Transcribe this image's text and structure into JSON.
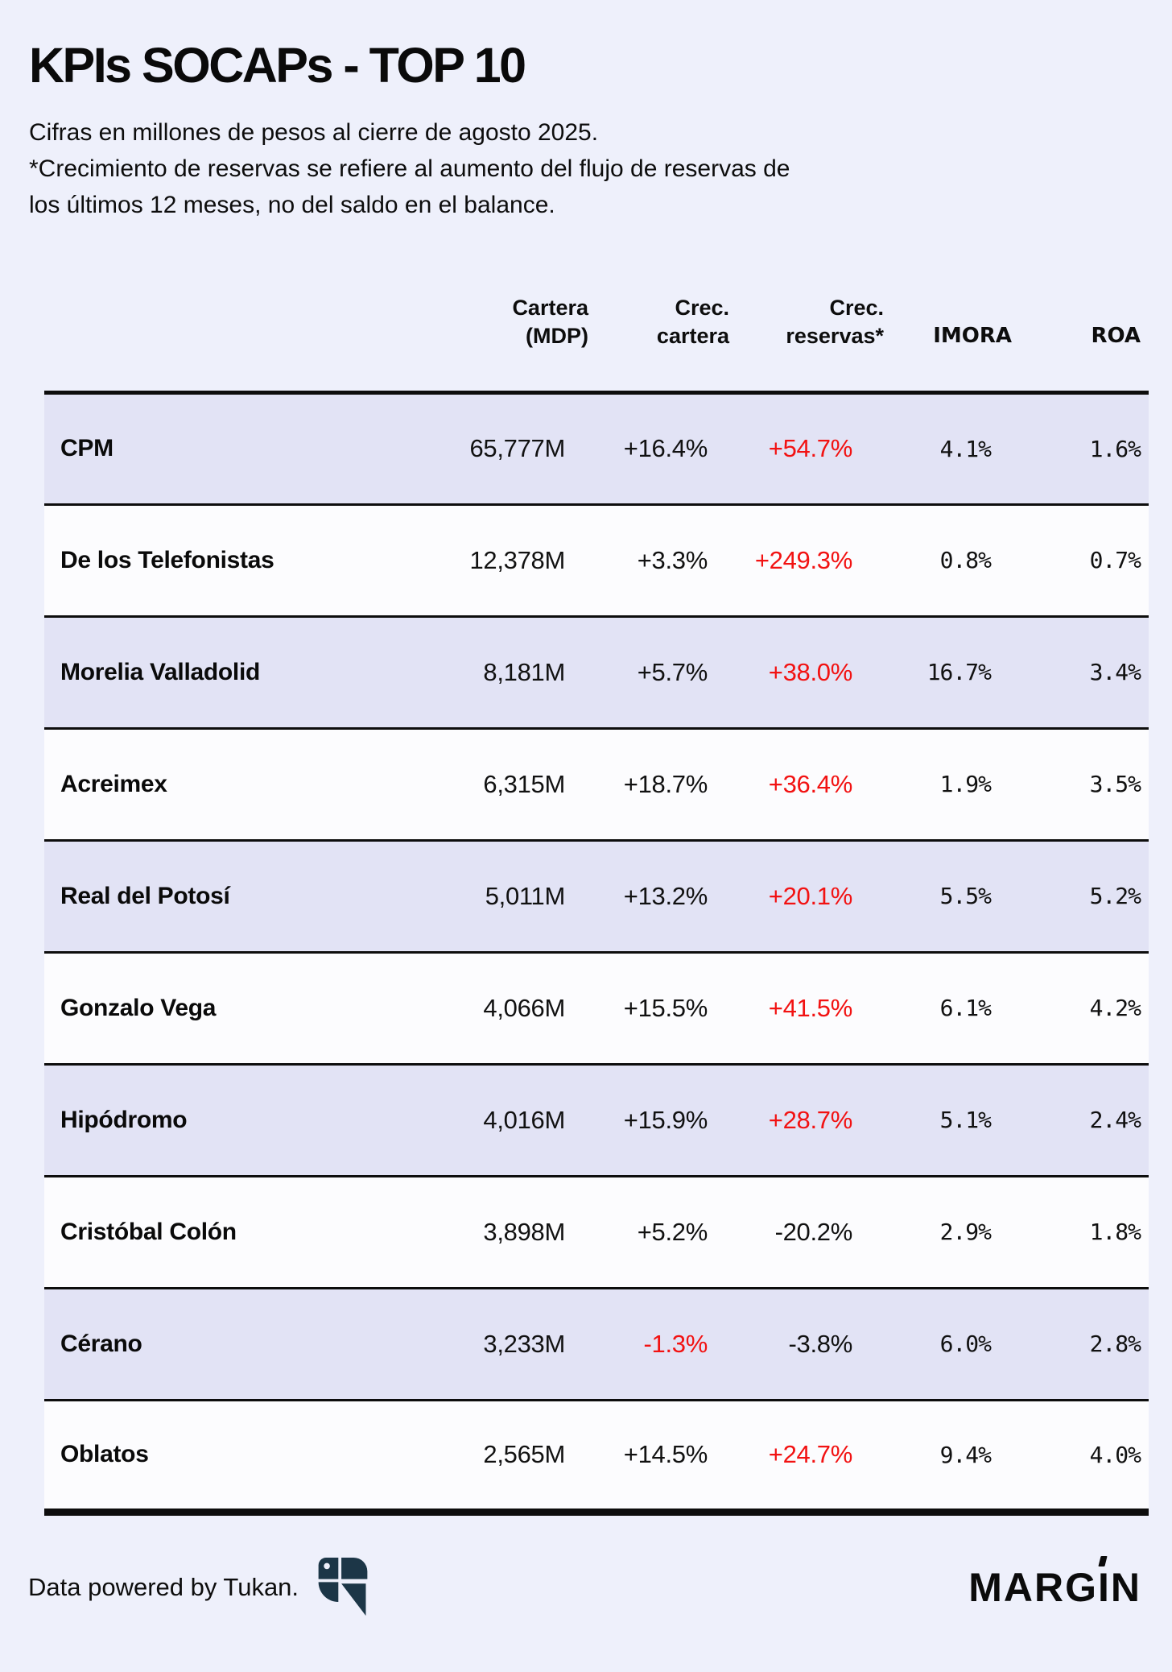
{
  "header": {
    "title": "KPIs SOCAPs - TOP 10",
    "subtitle": "Cifras en millones de pesos al cierre de agosto 2025.",
    "note": "*Crecimiento de reservas se refiere al aumento del flujo de reservas de los últimos 12 meses, no del saldo en el balance."
  },
  "chart_data": {
    "type": "table",
    "title": "KPIs SOCAPs - TOP 10",
    "unit": "millones de pesos (MDP)",
    "column_labels": [
      "Cartera\n(MDP)",
      "Crec.\ncartera",
      "Crec.\nreservas*",
      "IMORA",
      "ROA"
    ],
    "columns": [
      "Cartera (MDP)",
      "Crec. cartera",
      "Crec. reservas*",
      "IMORA",
      "ROA"
    ],
    "rows": [
      {
        "name": "CPM",
        "values": [
          "65,777M",
          "+16.4%",
          "+54.7%",
          "4.1%",
          "1.6%"
        ],
        "red": [
          false,
          false,
          true,
          false,
          false
        ]
      },
      {
        "name": "De los Telefonistas",
        "values": [
          "12,378M",
          "+3.3%",
          "+249.3%",
          "0.8%",
          "0.7%"
        ],
        "red": [
          false,
          false,
          true,
          false,
          false
        ]
      },
      {
        "name": "Morelia Valladolid",
        "values": [
          "8,181M",
          "+5.7%",
          "+38.0%",
          "16.7%",
          "3.4%"
        ],
        "red": [
          false,
          false,
          true,
          false,
          false
        ]
      },
      {
        "name": "Acreimex",
        "values": [
          "6,315M",
          "+18.7%",
          "+36.4%",
          "1.9%",
          "3.5%"
        ],
        "red": [
          false,
          false,
          true,
          false,
          false
        ]
      },
      {
        "name": "Real del Potosí",
        "values": [
          "5,011M",
          "+13.2%",
          "+20.1%",
          "5.5%",
          "5.2%"
        ],
        "red": [
          false,
          false,
          true,
          false,
          false
        ]
      },
      {
        "name": "Gonzalo Vega",
        "values": [
          "4,066M",
          "+15.5%",
          "+41.5%",
          "6.1%",
          "4.2%"
        ],
        "red": [
          false,
          false,
          true,
          false,
          false
        ]
      },
      {
        "name": "Hipódromo",
        "values": [
          "4,016M",
          "+15.9%",
          "+28.7%",
          "5.1%",
          "2.4%"
        ],
        "red": [
          false,
          false,
          true,
          false,
          false
        ]
      },
      {
        "name": "Cristóbal Colón",
        "values": [
          "3,898M",
          "+5.2%",
          "-20.2%",
          "2.9%",
          "1.8%"
        ],
        "red": [
          false,
          false,
          false,
          false,
          false
        ]
      },
      {
        "name": "Cérano",
        "values": [
          "3,233M",
          "-1.3%",
          "-3.8%",
          "6.0%",
          "2.8%"
        ],
        "red": [
          false,
          true,
          false,
          false,
          false
        ]
      },
      {
        "name": "Oblatos",
        "values": [
          "2,565M",
          "+14.5%",
          "+24.7%",
          "9.4%",
          "4.0%"
        ],
        "red": [
          false,
          false,
          true,
          false,
          false
        ]
      }
    ]
  },
  "footer": {
    "credit": "Data powered by Tukan.",
    "tukan_icon": "tukan-toucan-icon",
    "brand_left": "MARG",
    "brand_i": "I",
    "brand_right": "N"
  },
  "colors": {
    "page_bg": "#eef0fb",
    "row_stripe": "#e2e3f5",
    "row_white": "#fcfcfe",
    "text": "#0d0d0d",
    "highlight_red": "#f21212",
    "tukan_navy": "#1c3647"
  }
}
